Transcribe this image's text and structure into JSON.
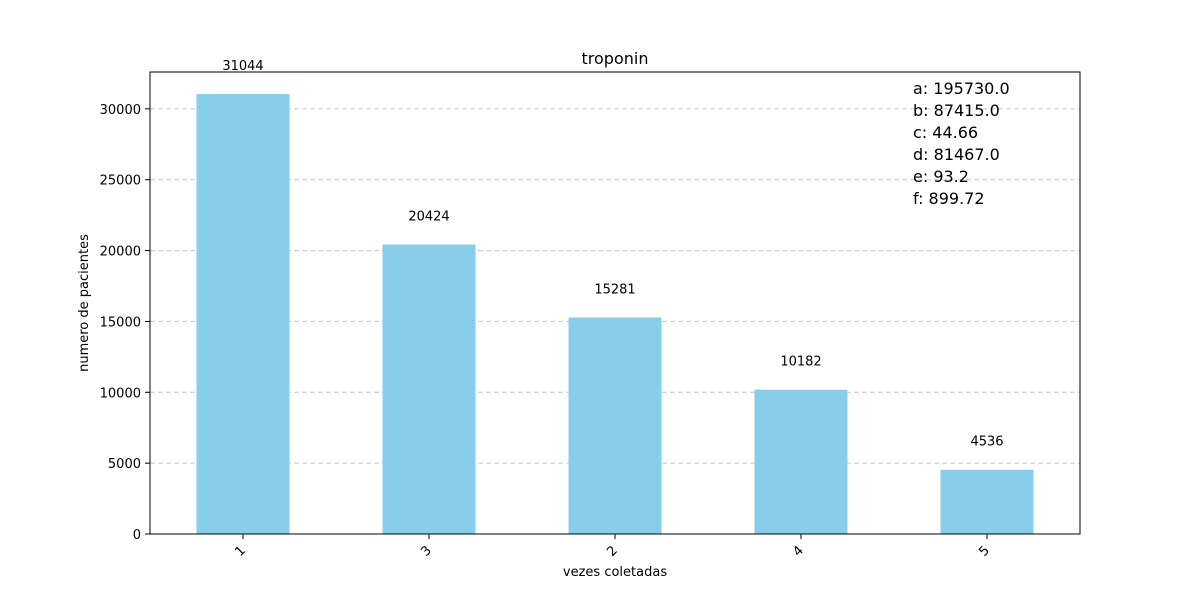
{
  "chart_data": {
    "type": "bar",
    "title": "troponin",
    "xlabel": "vezes coletadas",
    "ylabel": "numero de pacientes",
    "categories": [
      "1",
      "3",
      "2",
      "4",
      "5"
    ],
    "values": [
      31044,
      20424,
      15281,
      10182,
      4536
    ],
    "value_labels": [
      "31044",
      "20424",
      "15281",
      "10182",
      "4536"
    ],
    "ylim": [
      0,
      32600
    ],
    "yticks": [
      0,
      5000,
      10000,
      15000,
      20000,
      25000,
      30000
    ],
    "ytick_labels": [
      "0",
      "5000",
      "10000",
      "15000",
      "20000",
      "25000",
      "30000"
    ],
    "grid": "y-dashed",
    "bar_color": "#87CEEB",
    "annotations": [
      "a: 195730.0",
      "b: 87415.0",
      "c: 44.66",
      "d: 81467.0",
      "e: 93.2",
      "f: 899.72"
    ]
  }
}
